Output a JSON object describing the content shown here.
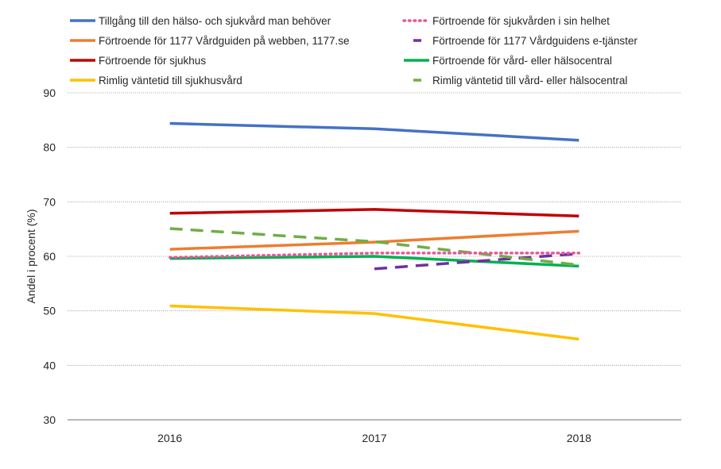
{
  "chart_data": {
    "type": "line",
    "title": "",
    "xlabel": "",
    "ylabel": "Andel i procent (%)",
    "ylim": [
      30,
      90
    ],
    "yticks": [
      30,
      40,
      50,
      60,
      70,
      80,
      90
    ],
    "categories": [
      "2016",
      "2017",
      "2018"
    ],
    "grid": true,
    "legend_position": "top",
    "series": [
      {
        "name": "Tillgång till den hälso- och sjukvård man behöver",
        "values": [
          84.4,
          83.4,
          81.3
        ],
        "color": "#4472C4",
        "style": "solid"
      },
      {
        "name": "Förtroende för sjukvården i sin helhet",
        "values": [
          59.8,
          60.6,
          60.6
        ],
        "color": "#E8579A",
        "style": "dotted"
      },
      {
        "name": "Förtroende för 1177 Vårdguiden på webben, 1177.se",
        "values": [
          61.3,
          62.6,
          64.6
        ],
        "color": "#ED7D31",
        "style": "solid"
      },
      {
        "name": "Förtroende för 1177 Vårdguidens e-tjänster",
        "values": [
          null,
          57.7,
          60.5
        ],
        "color": "#7030A0",
        "style": "dashed"
      },
      {
        "name": "Förtroende för sjukhus",
        "values": [
          67.9,
          68.6,
          67.4
        ],
        "color": "#C00000",
        "style": "solid"
      },
      {
        "name": "Förtroende för vård- eller hälsocentral",
        "values": [
          59.6,
          60.0,
          58.2
        ],
        "color": "#00B050",
        "style": "solid"
      },
      {
        "name": "Rimlig väntetid till sjukhusvård",
        "values": [
          50.9,
          49.5,
          44.8
        ],
        "color": "#FFC000",
        "style": "solid"
      },
      {
        "name": "Rimlig väntetid till vård- eller hälsocentral",
        "values": [
          65.1,
          62.7,
          58.4
        ],
        "color": "#70AD47",
        "style": "dashed"
      }
    ]
  }
}
